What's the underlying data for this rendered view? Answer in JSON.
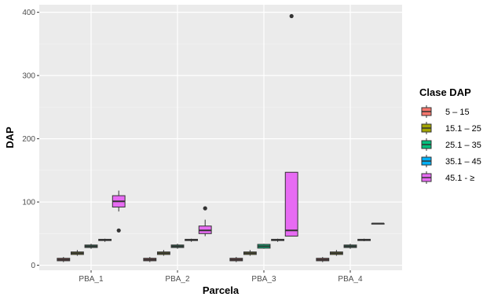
{
  "chart_data": {
    "type": "boxplot",
    "title": "",
    "xlabel": "Parcela",
    "ylabel": "DAP",
    "ylim": [
      -8,
      412
    ],
    "yticks": [
      0,
      100,
      200,
      300,
      400
    ],
    "grid": true,
    "legend_position": "right",
    "legend_title": "Clase DAP",
    "categories": [
      "PBA_1",
      "PBA_2",
      "PBA_3",
      "PBA_4"
    ],
    "series": [
      {
        "name": "5 – 15",
        "color": "#F8766D",
        "boxes": [
          {
            "min": 5,
            "q1": 7,
            "median": 9,
            "q3": 11,
            "max": 13,
            "outliers": []
          },
          {
            "min": 5,
            "q1": 7,
            "median": 9,
            "q3": 11,
            "max": 13,
            "outliers": []
          },
          {
            "min": 5,
            "q1": 7,
            "median": 9,
            "q3": 11,
            "max": 13,
            "outliers": []
          },
          {
            "min": 5,
            "q1": 7,
            "median": 9,
            "q3": 11,
            "max": 13,
            "outliers": []
          }
        ]
      },
      {
        "name": "15.1 – 25",
        "color": "#A3A500",
        "boxes": [
          {
            "min": 15,
            "q1": 17,
            "median": 19,
            "q3": 21,
            "max": 24,
            "outliers": []
          },
          {
            "min": 15,
            "q1": 17,
            "median": 19,
            "q3": 21,
            "max": 24,
            "outliers": []
          },
          {
            "min": 15,
            "q1": 17,
            "median": 19,
            "q3": 21,
            "max": 24,
            "outliers": []
          },
          {
            "min": 15,
            "q1": 17,
            "median": 19,
            "q3": 21,
            "max": 24,
            "outliers": []
          }
        ]
      },
      {
        "name": "25.1 – 35",
        "color": "#00BF7D",
        "boxes": [
          {
            "min": 26,
            "q1": 28,
            "median": 30,
            "q3": 32,
            "max": 34,
            "outliers": []
          },
          {
            "min": 26,
            "q1": 28,
            "median": 30,
            "q3": 32,
            "max": 34,
            "outliers": []
          },
          {
            "min": 26,
            "q1": 27,
            "median": 30,
            "q3": 33,
            "max": 34,
            "outliers": []
          },
          {
            "min": 26,
            "q1": 28,
            "median": 30,
            "q3": 32,
            "max": 34,
            "outliers": []
          }
        ]
      },
      {
        "name": "35.1 – 45",
        "color": "#00B0F6",
        "boxes": [
          {
            "min": 37,
            "q1": 39,
            "median": 40,
            "q3": 41,
            "max": 42,
            "outliers": []
          },
          {
            "min": 37,
            "q1": 39,
            "median": 40,
            "q3": 41,
            "max": 42,
            "outliers": []
          },
          {
            "min": 37,
            "q1": 39,
            "median": 40,
            "q3": 41,
            "max": 42,
            "outliers": []
          },
          {
            "min": 38,
            "q1": 39,
            "median": 40,
            "q3": 41,
            "max": 42,
            "outliers": []
          }
        ]
      },
      {
        "name": "45.1 - ≥",
        "color": "#E76BF3",
        "boxes": [
          {
            "min": 85,
            "q1": 92,
            "median": 101,
            "q3": 110,
            "max": 118,
            "outliers": [
              55
            ]
          },
          {
            "min": 46,
            "q1": 50,
            "median": 55,
            "q3": 62,
            "max": 72,
            "outliers": [
              90
            ]
          },
          {
            "min": 46,
            "q1": 46,
            "median": 55,
            "q3": 147,
            "max": 147,
            "outliers": [
              394
            ]
          },
          {
            "min": 66,
            "q1": 66,
            "median": 66,
            "q3": 66,
            "max": 66,
            "outliers": []
          }
        ]
      }
    ]
  }
}
